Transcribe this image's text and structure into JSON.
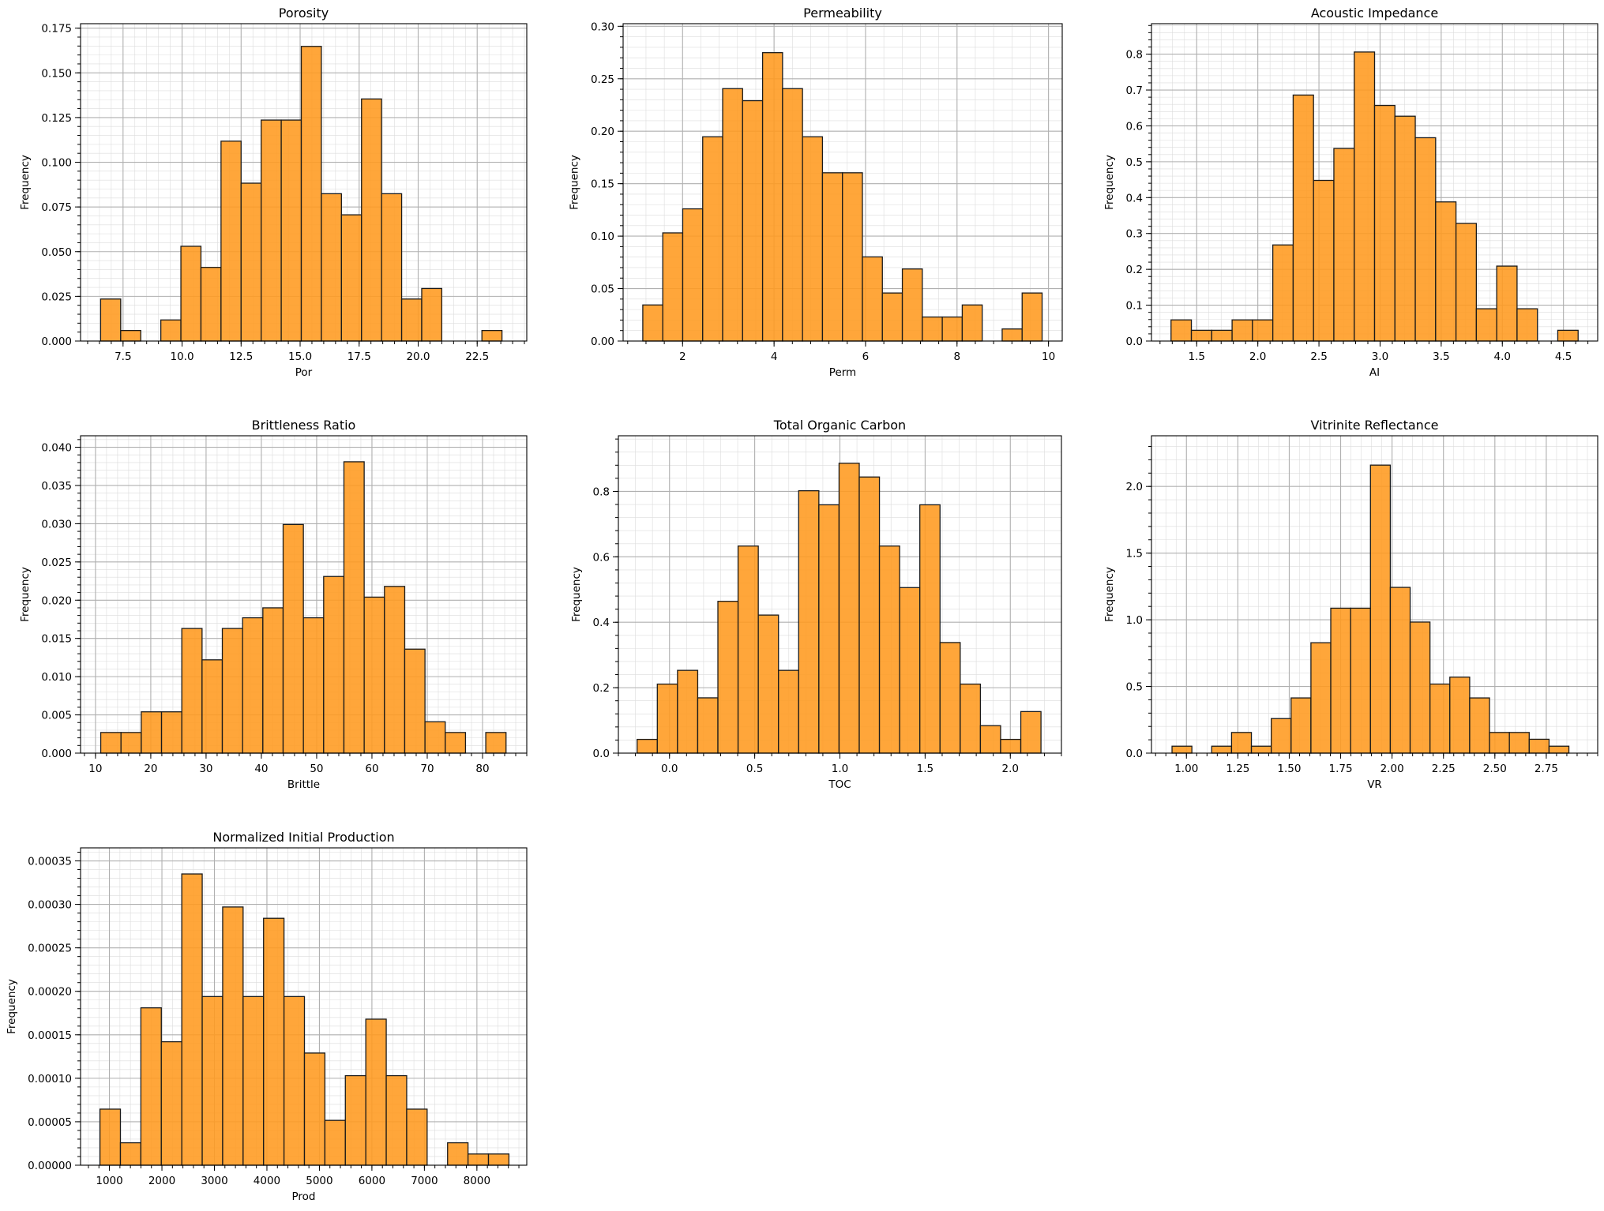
{
  "chart_data": [
    {
      "type": "bar",
      "id": "porosity",
      "title": "Porosity",
      "xlabel": "Por",
      "ylabel": "Frequency",
      "xlim": [
        5.7,
        24.6
      ],
      "ylim": [
        0,
        0.1775
      ],
      "xticks": [
        7.5,
        10.0,
        12.5,
        15.0,
        17.5,
        20.0,
        22.5
      ],
      "xtick_labels": [
        "7.5",
        "10.0",
        "12.5",
        "15.0",
        "17.5",
        "20.0",
        "22.5"
      ],
      "xminor_step": 0.5,
      "yticks": [
        0,
        0.025,
        0.05,
        0.075,
        0.1,
        0.125,
        0.15,
        0.175
      ],
      "ytick_labels": [
        "0.000",
        "0.025",
        "0.050",
        "0.075",
        "0.100",
        "0.125",
        "0.150",
        "0.175"
      ],
      "yminor_step": 0.005,
      "bin_start": 6.55,
      "bin_width": 0.85,
      "values": [
        0.0235,
        0.0059,
        0,
        0.0118,
        0.053,
        0.0412,
        0.1118,
        0.0883,
        0.1236,
        0.1236,
        0.1648,
        0.0824,
        0.0706,
        0.1354,
        0.0824,
        0.0235,
        0.0294,
        0,
        0,
        0.0059
      ]
    },
    {
      "type": "bar",
      "id": "permeability",
      "title": "Permeability",
      "xlabel": "Perm",
      "ylabel": "Frequency",
      "xlim": [
        0.7,
        10.3
      ],
      "ylim": [
        0,
        0.3025
      ],
      "xticks": [
        2,
        4,
        6,
        8,
        10
      ],
      "xtick_labels": [
        "2",
        "4",
        "6",
        "8",
        "10"
      ],
      "xminor_step": 0.4,
      "yticks": [
        0,
        0.05,
        0.1,
        0.15,
        0.2,
        0.25,
        0.3
      ],
      "ytick_labels": [
        "0.00",
        "0.05",
        "0.10",
        "0.15",
        "0.20",
        "0.25",
        "0.30"
      ],
      "yminor_step": 0.01,
      "bin_start": 1.13,
      "bin_width": 0.4365,
      "values": [
        0.0344,
        0.1031,
        0.126,
        0.1947,
        0.2406,
        0.2291,
        0.2749,
        0.2406,
        0.1947,
        0.1604,
        0.1604,
        0.0802,
        0.0458,
        0.0687,
        0.0229,
        0.0229,
        0.0344,
        0,
        0.0115,
        0.0458
      ]
    },
    {
      "type": "bar",
      "id": "acoustic-impedance",
      "title": "Acoustic Impedance",
      "xlabel": "AI",
      "ylabel": "Frequency",
      "xlim": [
        1.13,
        4.78
      ],
      "ylim": [
        0,
        0.885
      ],
      "xticks": [
        1.5,
        2.0,
        2.5,
        3.0,
        3.5,
        4.0,
        4.5
      ],
      "xtick_labels": [
        "1.5",
        "2.0",
        "2.5",
        "3.0",
        "3.5",
        "4.0",
        "4.5"
      ],
      "xminor_step": 0.1,
      "yticks": [
        0,
        0.1,
        0.2,
        0.3,
        0.4,
        0.5,
        0.6,
        0.7,
        0.8
      ],
      "ytick_labels": [
        "0.0",
        "0.1",
        "0.2",
        "0.3",
        "0.4",
        "0.5",
        "0.6",
        "0.7",
        "0.8"
      ],
      "yminor_step": 0.02,
      "bin_start": 1.29,
      "bin_width": 0.1665,
      "values": [
        0.059,
        0.03,
        0.03,
        0.059,
        0.059,
        0.268,
        0.686,
        0.448,
        0.537,
        0.806,
        0.657,
        0.627,
        0.567,
        0.388,
        0.328,
        0.09,
        0.209,
        0.09,
        0,
        0.03
      ]
    },
    {
      "type": "bar",
      "id": "brittleness-ratio",
      "title": "Brittleness Ratio",
      "xlabel": "Brittle",
      "ylabel": "Frequency",
      "xlim": [
        7.3,
        88.0
      ],
      "ylim": [
        0,
        0.0415
      ],
      "xticks": [
        10,
        20,
        30,
        40,
        50,
        60,
        70,
        80
      ],
      "xtick_labels": [
        "10",
        "20",
        "30",
        "40",
        "50",
        "60",
        "70",
        "80"
      ],
      "xminor_step": 2,
      "yticks": [
        0,
        0.005,
        0.01,
        0.015,
        0.02,
        0.025,
        0.03,
        0.035,
        0.04
      ],
      "ytick_labels": [
        "0.000",
        "0.005",
        "0.010",
        "0.015",
        "0.020",
        "0.025",
        "0.030",
        "0.035",
        "0.040"
      ],
      "yminor_step": 0.001,
      "bin_start": 10.95,
      "bin_width": 3.665,
      "values": [
        0.0027,
        0.0027,
        0.0054,
        0.0054,
        0.0163,
        0.0122,
        0.0163,
        0.0177,
        0.019,
        0.0299,
        0.0177,
        0.0231,
        0.0381,
        0.0204,
        0.0218,
        0.0136,
        0.0041,
        0.0027,
        0,
        0.0027
      ]
    },
    {
      "type": "bar",
      "id": "total-organic-carbon",
      "title": "Total Organic Carbon",
      "xlabel": "TOC",
      "ylabel": "Frequency",
      "xlim": [
        -0.3,
        2.3
      ],
      "ylim": [
        0,
        0.97
      ],
      "xticks": [
        0.0,
        0.5,
        1.0,
        1.5,
        2.0
      ],
      "xtick_labels": [
        "0.0",
        "0.5",
        "1.0",
        "1.5",
        "2.0"
      ],
      "xminor_step": 0.1,
      "yticks": [
        0,
        0.2,
        0.4,
        0.6,
        0.8
      ],
      "ytick_labels": [
        "0.0",
        "0.2",
        "0.4",
        "0.6",
        "0.8"
      ],
      "yminor_step": 0.04,
      "bin_start": -0.19,
      "bin_width": 0.1185,
      "values": [
        0.042,
        0.211,
        0.253,
        0.169,
        0.464,
        0.633,
        0.422,
        0.253,
        0.802,
        0.759,
        0.886,
        0.844,
        0.633,
        0.506,
        0.759,
        0.338,
        0.211,
        0.084,
        0.042,
        0.127
      ]
    },
    {
      "type": "bar",
      "id": "vitrinite-reflectance",
      "title": "Vitrinite Reflectance",
      "xlabel": "VR",
      "ylabel": "Frequency",
      "xlim": [
        0.83,
        3.0
      ],
      "ylim": [
        0,
        2.38
      ],
      "xticks": [
        1.0,
        1.25,
        1.5,
        1.75,
        2.0,
        2.25,
        2.5,
        2.75
      ],
      "xtick_labels": [
        "1.00",
        "1.25",
        "1.50",
        "1.75",
        "2.00",
        "2.25",
        "2.50",
        "2.75"
      ],
      "xminor_step": 0.05,
      "yticks": [
        0,
        0.5,
        1.0,
        1.5,
        2.0
      ],
      "ytick_labels": [
        "0.0",
        "0.5",
        "1.0",
        "1.5",
        "2.0"
      ],
      "yminor_step": 0.1,
      "bin_start": 0.93,
      "bin_width": 0.0965,
      "values": [
        0.052,
        0,
        0.052,
        0.155,
        0.052,
        0.259,
        0.414,
        0.828,
        1.087,
        1.087,
        2.16,
        1.243,
        0.983,
        0.518,
        0.57,
        0.414,
        0.155,
        0.155,
        0.104,
        0.052
      ]
    },
    {
      "type": "bar",
      "id": "normalized-initial-production",
      "title": "Normalized Initial Production",
      "xlabel": "Prod",
      "ylabel": "Frequency",
      "xlim": [
        450,
        8950
      ],
      "ylim": [
        0,
        0.000365
      ],
      "xticks": [
        1000,
        2000,
        3000,
        4000,
        5000,
        6000,
        7000,
        8000
      ],
      "xtick_labels": [
        "1000",
        "2000",
        "3000",
        "4000",
        "5000",
        "6000",
        "7000",
        "8000"
      ],
      "xminor_step": 200,
      "yticks": [
        0,
        5e-05,
        0.0001,
        0.00015,
        0.0002,
        0.00025,
        0.0003,
        0.00035
      ],
      "ytick_labels": [
        "0.00000",
        "0.00005",
        "0.00010",
        "0.00015",
        "0.00020",
        "0.00025",
        "0.00030",
        "0.00035"
      ],
      "yminor_step": 1e-05,
      "bin_start": 820,
      "bin_width": 389.5,
      "values": [
        6.45e-05,
        2.58e-05,
        0.000181,
        0.000142,
        0.000335,
        0.000194,
        0.000297,
        0.000194,
        0.000284,
        0.000194,
        0.000129,
        5.16e-05,
        0.000103,
        0.000168,
        0.000103,
        6.45e-05,
        0,
        2.58e-05,
        1.29e-05,
        1.29e-05
      ]
    }
  ]
}
